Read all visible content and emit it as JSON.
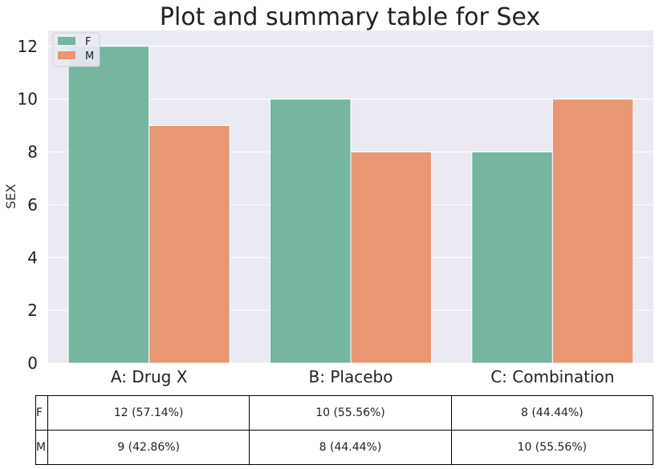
{
  "chart_data": {
    "type": "bar",
    "title": "Plot and summary table for Sex",
    "xlabel": "",
    "ylabel": "SEX",
    "categories": [
      "A: Drug X",
      "B: Placebo",
      "C: Combination"
    ],
    "series": [
      {
        "name": "F",
        "values": [
          12,
          10,
          8
        ],
        "color": "#76b5a0"
      },
      {
        "name": "M",
        "values": [
          9,
          8,
          10
        ],
        "color": "#e99673"
      }
    ],
    "ylim": [
      0,
      12.6
    ],
    "yticks": [
      0,
      2,
      4,
      6,
      8,
      10,
      12
    ],
    "grid": true,
    "legend_position": "top-left",
    "background": "#eaeaf2"
  },
  "table": {
    "rows": [
      {
        "label": "F",
        "cells": [
          "12 (57.14%)",
          "10 (55.56%)",
          "8 (44.44%)"
        ]
      },
      {
        "label": "M",
        "cells": [
          "9 (42.86%)",
          "8 (44.44%)",
          "10 (55.56%)"
        ]
      }
    ]
  }
}
